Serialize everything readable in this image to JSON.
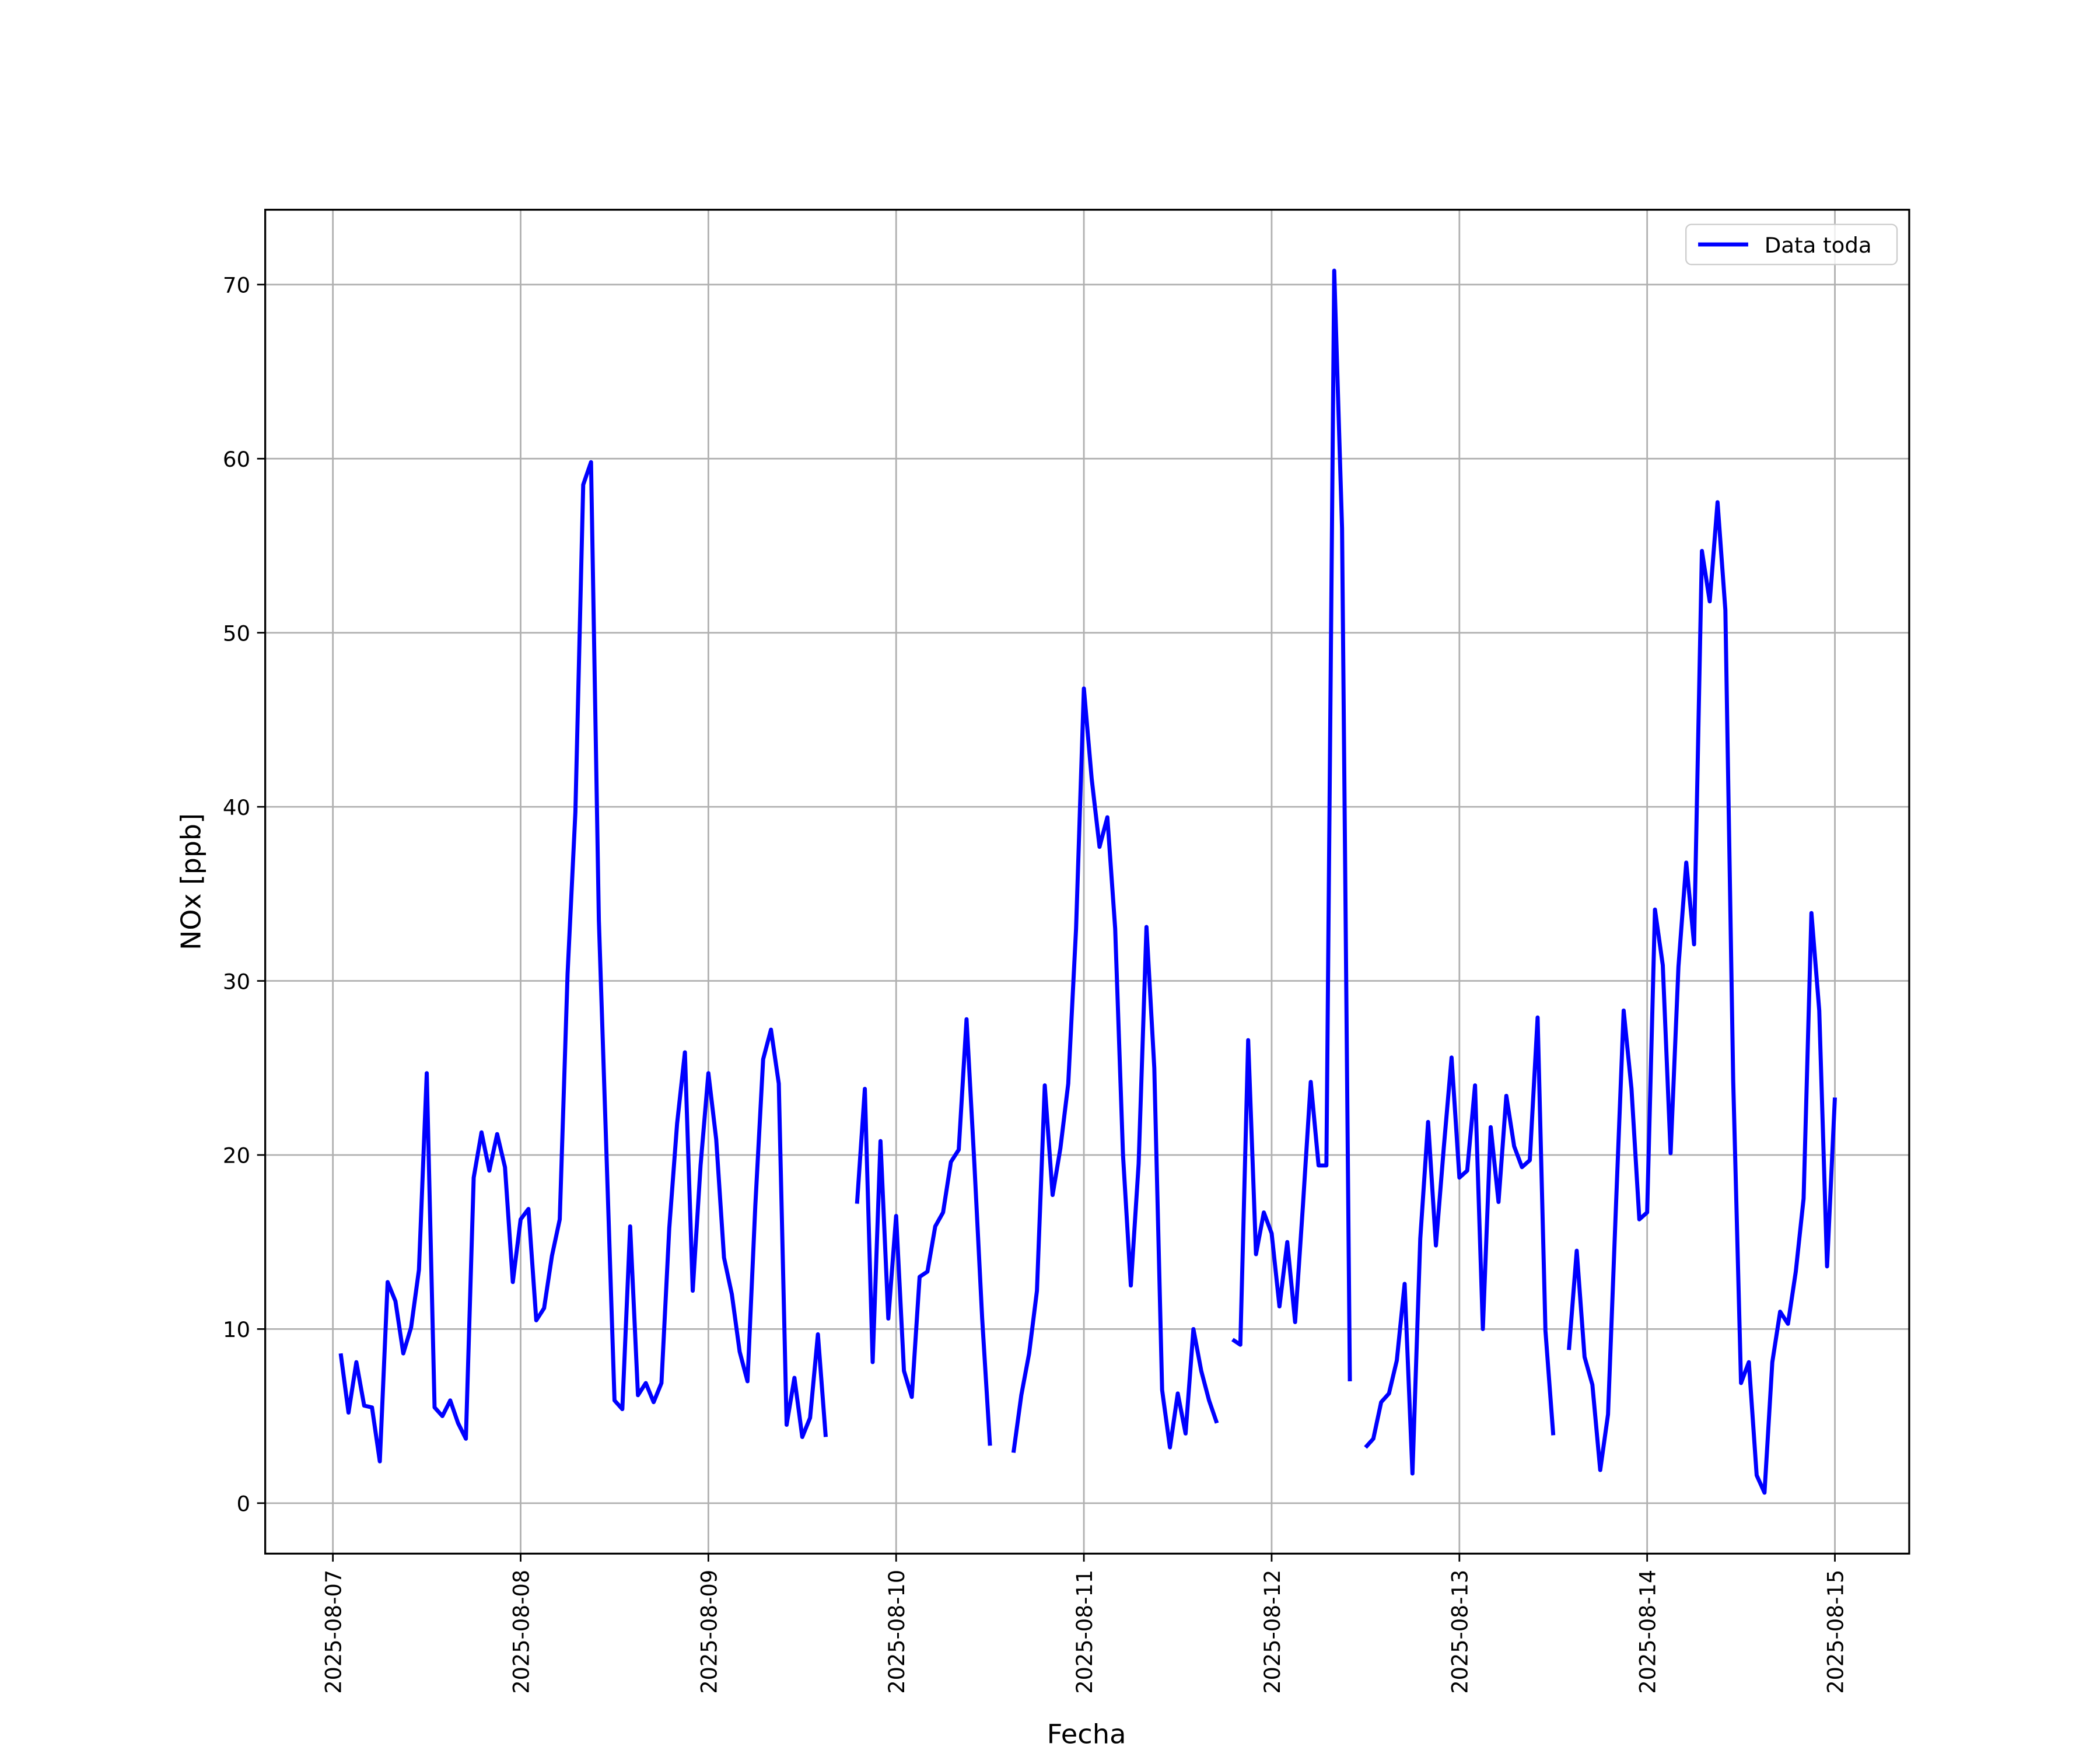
{
  "chart_data": {
    "type": "line",
    "xlabel": "Fecha",
    "ylabel": "NOx [ppb]",
    "x": [
      1,
      2,
      3,
      4,
      5,
      6,
      7,
      8,
      9,
      10,
      11,
      12,
      13,
      14,
      15,
      16,
      17,
      18,
      19,
      20,
      21,
      22,
      23,
      24,
      25,
      26,
      27,
      28,
      29,
      30,
      31,
      32,
      33,
      34,
      35,
      36,
      37,
      38,
      39,
      40,
      41,
      42,
      43,
      44,
      45,
      46,
      47,
      48,
      49,
      50,
      51,
      52,
      53,
      54,
      55,
      56,
      57,
      58,
      59,
      60,
      61,
      62,
      63,
      64,
      65,
      66,
      67,
      68,
      69,
      70,
      71,
      72,
      73,
      74,
      75,
      76,
      77,
      78,
      79,
      80,
      81,
      82,
      83,
      84,
      85,
      86,
      87,
      88,
      89,
      90,
      91,
      92,
      93,
      94,
      95,
      96,
      97,
      98,
      99,
      100,
      101,
      102,
      103,
      104,
      105,
      106,
      107,
      108,
      109,
      110,
      111,
      112,
      113,
      114,
      115,
      116,
      117,
      118,
      119,
      120,
      121,
      122,
      123,
      124,
      125,
      126,
      127,
      128,
      129,
      130,
      131,
      132,
      133,
      134,
      135,
      136,
      137,
      138,
      139,
      140,
      141,
      142,
      143,
      144,
      145,
      146,
      147,
      148,
      149,
      150,
      151,
      152,
      153,
      154,
      155,
      156,
      157,
      158,
      159,
      160,
      161,
      162,
      163,
      164,
      165,
      166,
      167,
      168,
      169,
      170,
      171,
      172,
      173,
      174,
      175,
      176,
      177,
      178,
      179,
      180,
      181,
      182,
      183,
      184,
      185,
      186,
      187,
      188,
      189,
      190,
      191,
      192
    ],
    "series": [
      {
        "name": "Data toda",
        "color": "#0000ff",
        "values": [
          8.6,
          5.2,
          8.1,
          5.6,
          5.5,
          2.4,
          12.7,
          11.6,
          8.6,
          10.1,
          13.4,
          24.7,
          5.5,
          5.0,
          5.9,
          4.6,
          3.7,
          18.7,
          21.3,
          19.1,
          21.2,
          19.3,
          12.7,
          16.3,
          16.9,
          10.5,
          11.2,
          14.2,
          16.3,
          30.4,
          39.7,
          58.5,
          59.8,
          33.5,
          19.7,
          5.9,
          5.4,
          15.9,
          6.2,
          6.9,
          5.8,
          6.9,
          15.8,
          21.8,
          25.9,
          12.2,
          19.4,
          24.7,
          20.9,
          14.1,
          12.0,
          8.7,
          7.0,
          17.1,
          25.5,
          27.2,
          24.1,
          4.5,
          7.2,
          3.8,
          4.9,
          9.7,
          3.8,
          null,
          null,
          null,
          17.2,
          23.8,
          8.1,
          20.8,
          10.6,
          16.5,
          7.6,
          6.1,
          13.0,
          13.3,
          15.9,
          16.7,
          19.6,
          20.3,
          27.8,
          19.5,
          10.6,
          3.3,
          null,
          null,
          2.9,
          6.2,
          8.6,
          12.2,
          24.0,
          17.7,
          20.4,
          24.1,
          33.0,
          46.8,
          41.6,
          37.7,
          39.4,
          33.0,
          20.0,
          12.5,
          19.5,
          33.1,
          25.0,
          6.5,
          3.2,
          6.3,
          4.0,
          10.0,
          7.6,
          5.9,
          4.6,
          null,
          9.4,
          9.1,
          26.6,
          14.3,
          16.7,
          15.5,
          11.3,
          15.0,
          10.4,
          17.1,
          24.2,
          19.4,
          19.4,
          70.8,
          56.0,
          7.0,
          null,
          3.2,
          3.7,
          5.8,
          6.3,
          8.2,
          12.6,
          1.7,
          15.2,
          21.9,
          14.8,
          20.4,
          25.6,
          18.7,
          19.1,
          24.0,
          10.0,
          21.6,
          17.3,
          23.4,
          20.5,
          19.3,
          19.7,
          27.9,
          9.9,
          3.9,
          null,
          8.8,
          14.5,
          8.4,
          6.8,
          1.9,
          5.1,
          16.9,
          28.3,
          23.8,
          16.3,
          16.7,
          34.1,
          30.9,
          20.1,
          30.8,
          36.8,
          32.1,
          54.7,
          51.8,
          57.5,
          51.3,
          24.3,
          6.9,
          8.1,
          1.6,
          0.6,
          8.1,
          11.0,
          10.3,
          13.3,
          17.5,
          33.9,
          28.3,
          13.6,
          23.3
        ]
      }
    ],
    "xlim": [
      -8.65,
      201.5
    ],
    "xticks": [
      {
        "value": 0,
        "label": "2025-08-07"
      },
      {
        "value": 24,
        "label": "2025-08-08"
      },
      {
        "value": 48,
        "label": "2025-08-09"
      },
      {
        "value": 72,
        "label": "2025-08-10"
      },
      {
        "value": 96,
        "label": "2025-08-11"
      },
      {
        "value": 120,
        "label": "2025-08-12"
      },
      {
        "value": 144,
        "label": "2025-08-13"
      },
      {
        "value": 168,
        "label": "2025-08-14"
      },
      {
        "value": 192,
        "label": "2025-08-15"
      }
    ],
    "ylim": [
      -2.9,
      74.3
    ],
    "yticks": [
      0,
      10,
      20,
      30,
      40,
      50,
      60,
      70
    ],
    "grid": true,
    "legend": "upper right"
  }
}
